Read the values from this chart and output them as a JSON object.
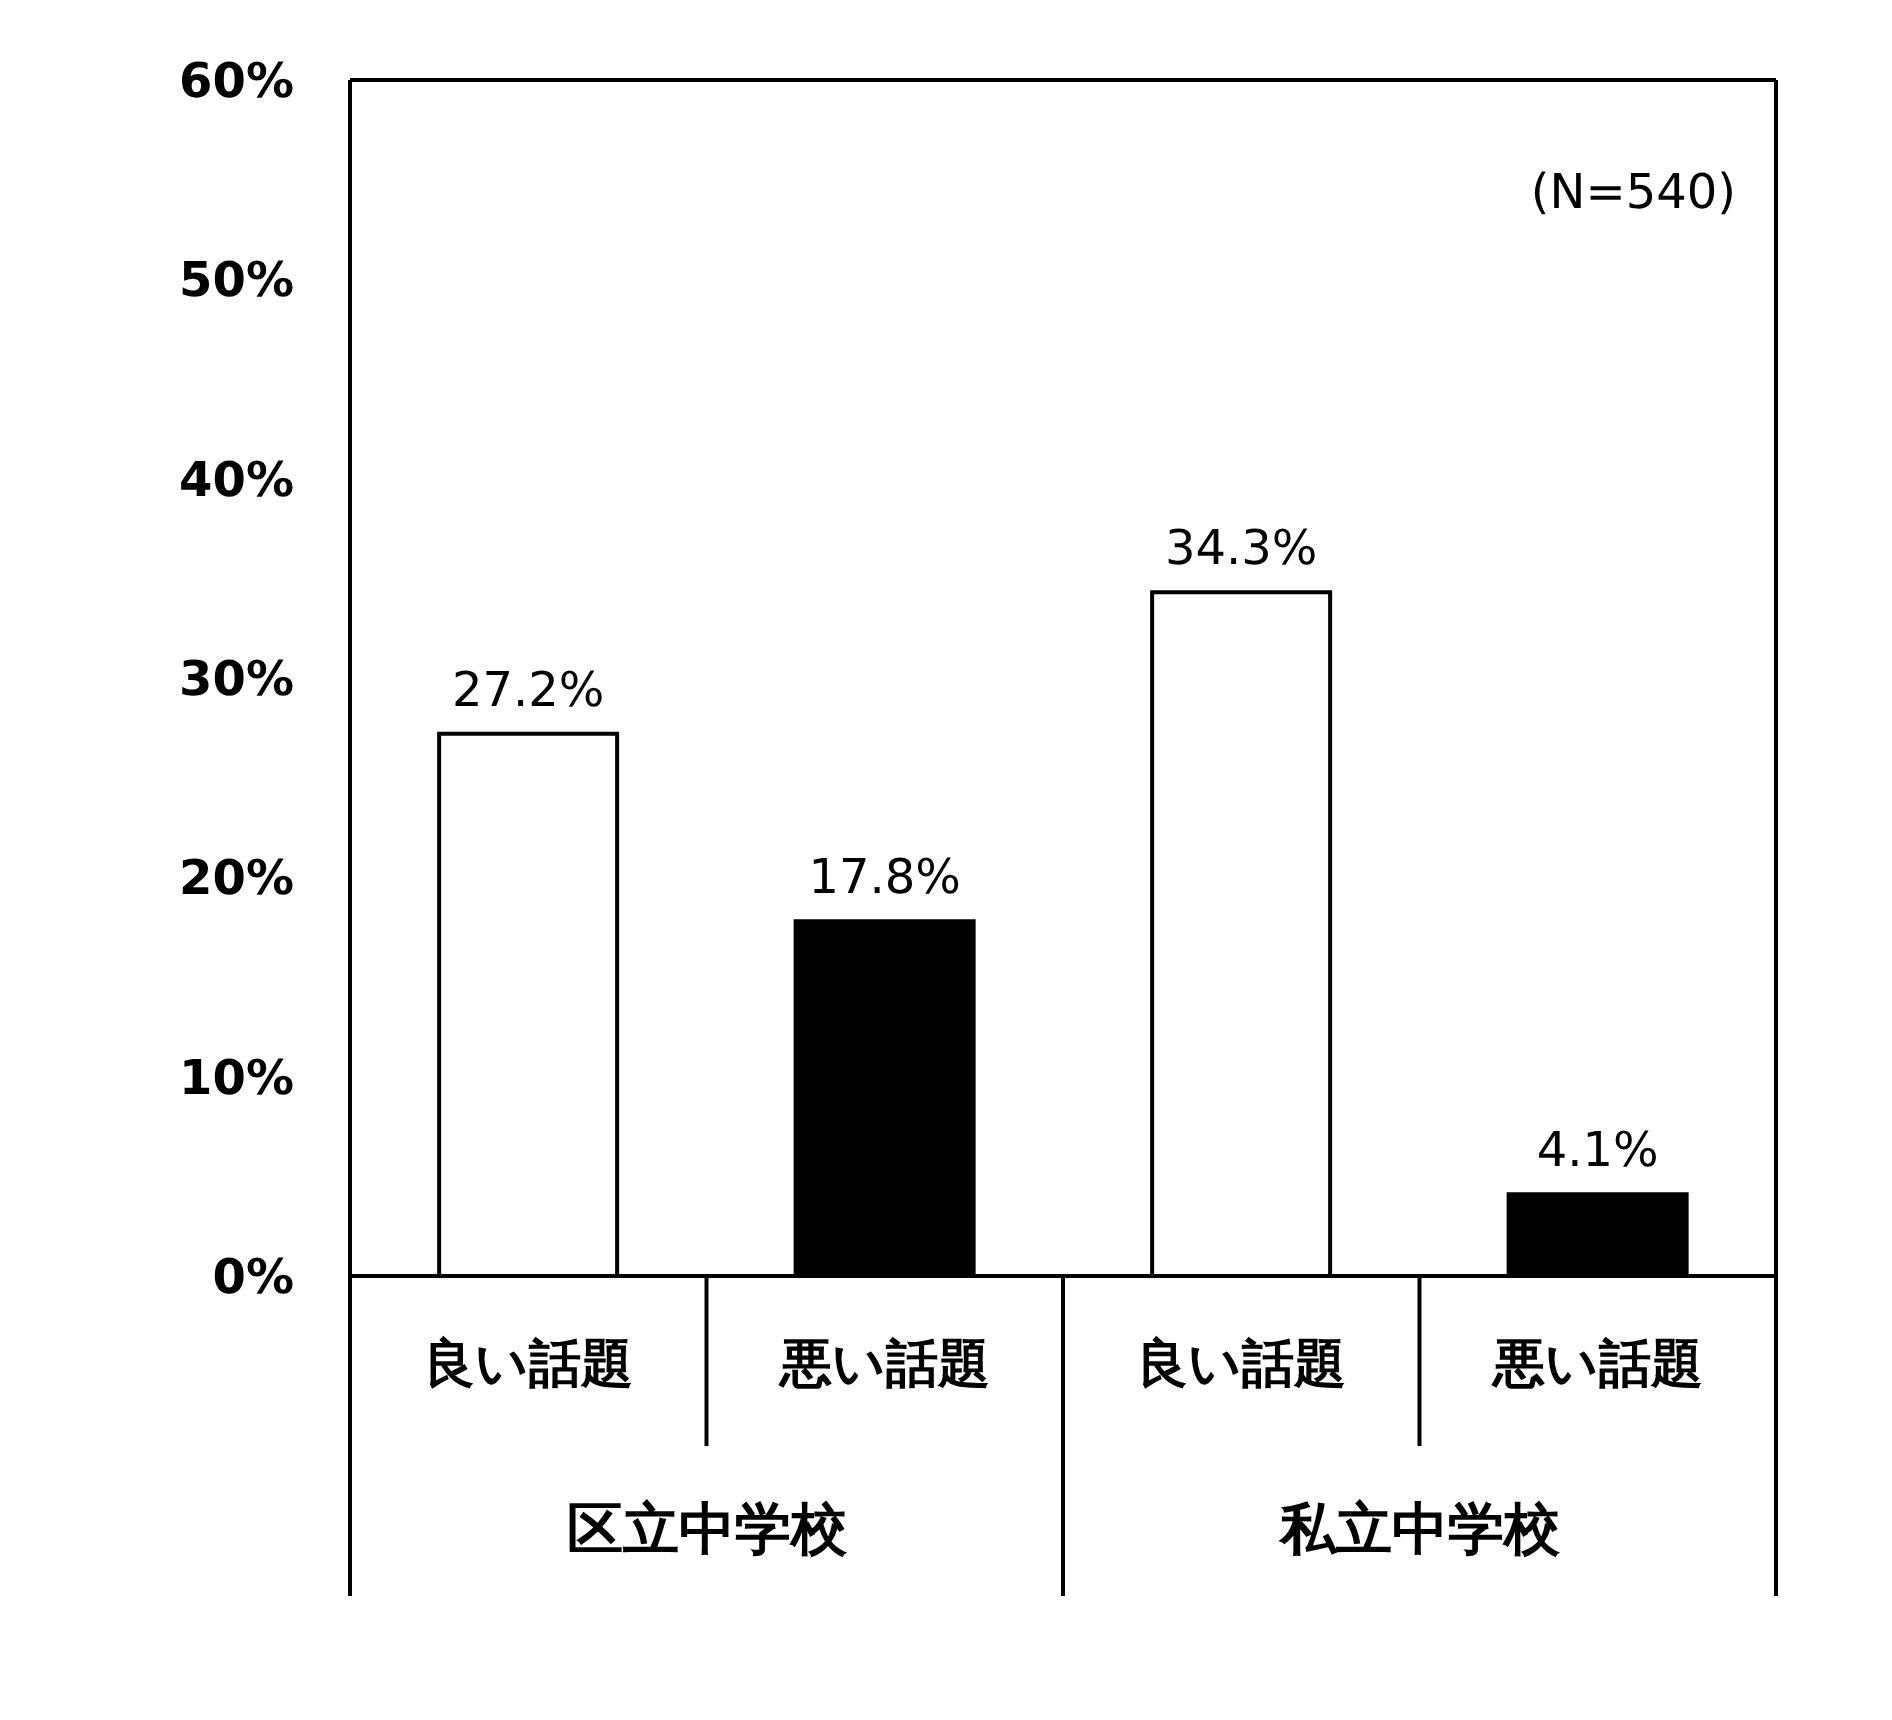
{
  "chart_data": {
    "type": "bar",
    "categories": [
      "良い話題",
      "悪い話題",
      "良い話題",
      "悪い話題"
    ],
    "values": [
      27.2,
      17.8,
      34.3,
      4.1
    ],
    "colors": [
      "#ffffff",
      "#000000",
      "#ffffff",
      "#000000"
    ],
    "value_labels": [
      "27.2%",
      "17.8%",
      "34.3%",
      "4.1%"
    ],
    "ylim": [
      0,
      60
    ],
    "yticks": [
      {
        "value": 0,
        "label": "0%"
      },
      {
        "value": 10,
        "label": "10%"
      },
      {
        "value": 20,
        "label": "20%"
      },
      {
        "value": 30,
        "label": "30%"
      },
      {
        "value": 40,
        "label": "40%"
      },
      {
        "value": 50,
        "label": "50%"
      },
      {
        "value": 60,
        "label": "60%"
      }
    ],
    "annotations": [
      "(N=540)",
      "区立中学校",
      "私立中学校"
    ]
  }
}
